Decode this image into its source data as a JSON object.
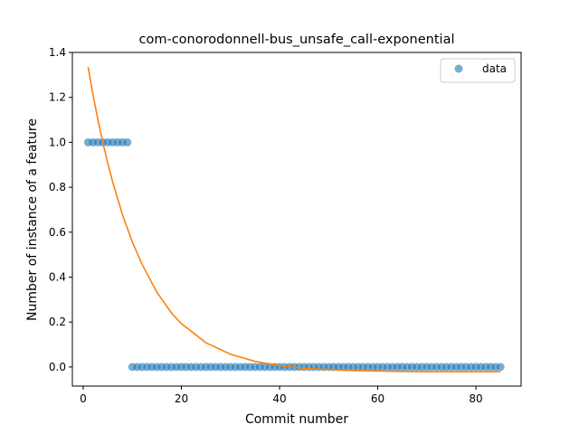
{
  "chart_data": {
    "type": "scatter",
    "title": "com-conorodonnell-bus_unsafe_call-exponential",
    "xlabel": "Commit number",
    "ylabel": "Number of instance of a feature",
    "xlim": [
      -2.2,
      89.2
    ],
    "ylim": [
      -0.085,
      1.4
    ],
    "x_ticks": [
      0,
      20,
      40,
      60,
      80
    ],
    "x_tick_labels": [
      "0",
      "20",
      "40",
      "60",
      "80"
    ],
    "y_ticks": [
      0.0,
      0.2,
      0.4,
      0.6,
      0.8,
      1.0,
      1.2,
      1.4
    ],
    "y_tick_labels": [
      "0.0",
      "0.2",
      "0.4",
      "0.6",
      "0.8",
      "1.0",
      "1.2",
      "1.4"
    ],
    "grid": false,
    "legend": {
      "placement": "top-right",
      "entries": [
        "data"
      ]
    },
    "series": [
      {
        "name": "data",
        "kind": "scatter",
        "color": "#1f77b4",
        "x": [
          1,
          2,
          3,
          4,
          5,
          6,
          7,
          8,
          9,
          10,
          11,
          12,
          13,
          14,
          15,
          16,
          17,
          18,
          19,
          20,
          21,
          22,
          23,
          24,
          25,
          26,
          27,
          28,
          29,
          30,
          31,
          32,
          33,
          34,
          35,
          36,
          37,
          38,
          39,
          40,
          41,
          42,
          43,
          44,
          45,
          46,
          47,
          48,
          49,
          50,
          51,
          52,
          53,
          54,
          55,
          56,
          57,
          58,
          59,
          60,
          61,
          62,
          63,
          64,
          65,
          66,
          67,
          68,
          69,
          70,
          71,
          72,
          73,
          74,
          75,
          76,
          77,
          78,
          79,
          80,
          81,
          82,
          83,
          84,
          85
        ],
        "y": [
          1,
          1,
          1,
          1,
          1,
          1,
          1,
          1,
          1,
          0,
          0,
          0,
          0,
          0,
          0,
          0,
          0,
          0,
          0,
          0,
          0,
          0,
          0,
          0,
          0,
          0,
          0,
          0,
          0,
          0,
          0,
          0,
          0,
          0,
          0,
          0,
          0,
          0,
          0,
          0,
          0,
          0,
          0,
          0,
          0,
          0,
          0,
          0,
          0,
          0,
          0,
          0,
          0,
          0,
          0,
          0,
          0,
          0,
          0,
          0,
          0,
          0,
          0,
          0,
          0,
          0,
          0,
          0,
          0,
          0,
          0,
          0,
          0,
          0,
          0,
          0,
          0,
          0,
          0,
          0,
          0,
          0,
          0,
          0,
          0
        ]
      },
      {
        "kind": "line",
        "color": "#ff7f0e",
        "x": [
          1,
          2,
          3,
          4,
          5,
          6,
          8,
          10,
          12,
          15,
          18,
          20,
          25,
          30,
          35,
          40,
          45,
          50,
          55,
          60,
          65,
          70,
          75,
          80,
          85
        ],
        "y": [
          1.335,
          1.212,
          1.101,
          1.0,
          0.908,
          0.824,
          0.678,
          0.557,
          0.457,
          0.333,
          0.24,
          0.193,
          0.108,
          0.057,
          0.025,
          0.006,
          -0.006,
          -0.012,
          -0.016,
          -0.018,
          -0.02,
          -0.021,
          -0.021,
          -0.021,
          -0.021
        ]
      }
    ]
  }
}
